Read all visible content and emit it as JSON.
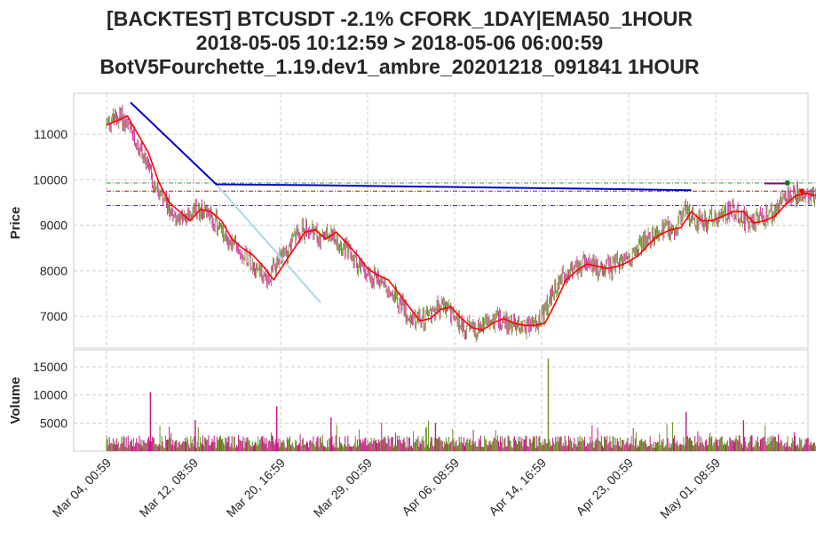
{
  "title": {
    "line1": "[BACKTEST] BTCUSDT -2.1% CFORK_1DAY|EMA50_1HOUR",
    "line2": "2018-05-05 10:12:59 > 2018-05-06 06:00:59",
    "line3": "BotV5Fourchette_1.19.dev1_ambre_20201218_091841 1HOUR"
  },
  "chart_data": [
    {
      "type": "candlestick",
      "panel": "price",
      "ylabel": "Price",
      "ylim": [
        6300,
        11900
      ],
      "yticks": [
        7000,
        8000,
        9000,
        10000,
        11000
      ],
      "xlim_days": [
        -2,
        68
      ],
      "xticks": [
        "Mar 04, 00:59",
        "Mar 12, 08:59",
        "Mar 20, 16:59",
        "Mar 29, 00:59",
        "Apr 06, 08:59",
        "Apr 14, 16:59",
        "Apr 23, 00:59",
        "May 01, 08:59"
      ],
      "grid": true,
      "colors": {
        "up": "#6b8e23",
        "down": "#c71585",
        "ema": "#ff0000",
        "blue": "#0000cd",
        "lightblue": "#add8e6",
        "green": "#008000",
        "darkred": "#8b0000",
        "navy": "#000080",
        "purple": "#800080"
      },
      "ema_series": [
        [
          0,
          11200
        ],
        [
          2,
          11400
        ],
        [
          3,
          11000
        ],
        [
          4,
          10600
        ],
        [
          5,
          9950
        ],
        [
          6,
          9500
        ],
        [
          7,
          9300
        ],
        [
          8,
          9100
        ],
        [
          9,
          9350
        ],
        [
          10,
          9300
        ],
        [
          11,
          9100
        ],
        [
          12,
          8700
        ],
        [
          13,
          8500
        ],
        [
          14,
          8350
        ],
        [
          15,
          8100
        ],
        [
          16,
          7800
        ],
        [
          17,
          8150
        ],
        [
          18,
          8500
        ],
        [
          19,
          8850
        ],
        [
          20,
          8900
        ],
        [
          21,
          8700
        ],
        [
          22,
          8850
        ],
        [
          23,
          8600
        ],
        [
          24,
          8350
        ],
        [
          25,
          8050
        ],
        [
          26,
          7900
        ],
        [
          27,
          7800
        ],
        [
          28,
          7500
        ],
        [
          29,
          7200
        ],
        [
          30,
          6900
        ],
        [
          31,
          6950
        ],
        [
          32,
          7150
        ],
        [
          33,
          7200
        ],
        [
          34,
          6950
        ],
        [
          35,
          6750
        ],
        [
          36,
          6700
        ],
        [
          37,
          6850
        ],
        [
          38,
          6950
        ],
        [
          39,
          6850
        ],
        [
          40,
          6800
        ],
        [
          41,
          6800
        ],
        [
          42,
          6850
        ],
        [
          43,
          7300
        ],
        [
          44,
          7800
        ],
        [
          45,
          8000
        ],
        [
          46,
          8150
        ],
        [
          47,
          8100
        ],
        [
          48,
          8050
        ],
        [
          49,
          8100
        ],
        [
          50,
          8200
        ],
        [
          51,
          8350
        ],
        [
          52,
          8600
        ],
        [
          53,
          8800
        ],
        [
          54,
          8900
        ],
        [
          55,
          8950
        ],
        [
          56,
          9300
        ],
        [
          57,
          9100
        ],
        [
          58,
          9100
        ],
        [
          59,
          9200
        ],
        [
          60,
          9300
        ],
        [
          61,
          9300
        ],
        [
          62,
          9050
        ],
        [
          63,
          9100
        ],
        [
          64,
          9200
        ],
        [
          65,
          9450
        ],
        [
          66,
          9650
        ],
        [
          67,
          9700
        ],
        [
          68,
          9650
        ]
      ],
      "blue_series": [
        [
          2.3,
          11700
        ],
        [
          10.5,
          9900
        ],
        [
          20,
          9880
        ],
        [
          30,
          9850
        ],
        [
          40,
          9820
        ],
        [
          50,
          9790
        ],
        [
          56,
          9770
        ]
      ],
      "lightblue_series": [
        [
          10.5,
          9900
        ],
        [
          20.5,
          7300
        ]
      ],
      "hlines": [
        {
          "y": 9930,
          "color": "green",
          "x": [
            0,
            68
          ]
        },
        {
          "y": 9750,
          "color": "darkred",
          "x": [
            0,
            68
          ]
        },
        {
          "y": 9430,
          "color": "navy",
          "x": [
            0,
            68
          ]
        }
      ],
      "purple_segment": {
        "y": 9920,
        "x": [
          63,
          65
        ]
      }
    },
    {
      "type": "bar",
      "panel": "volume",
      "ylabel": "Volume",
      "ylim": [
        0,
        18000
      ],
      "yticks": [
        5000,
        10000,
        15000
      ],
      "spikes": [
        [
          4.2,
          10500
        ],
        [
          8.5,
          5500
        ],
        [
          16.3,
          8000
        ],
        [
          21.5,
          6000
        ],
        [
          31.5,
          5000
        ],
        [
          42.3,
          16500
        ],
        [
          55.5,
          7000
        ],
        [
          61,
          5500
        ]
      ]
    }
  ]
}
